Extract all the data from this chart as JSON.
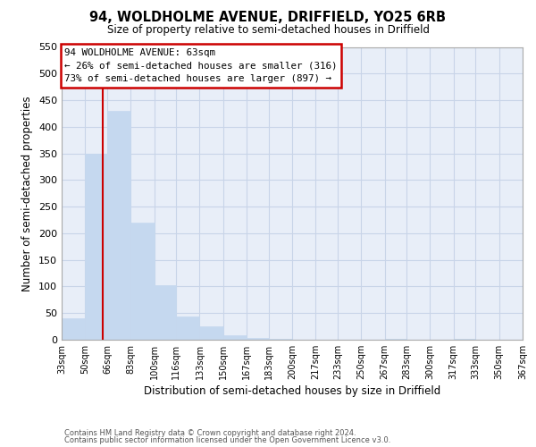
{
  "title": "94, WOLDHOLME AVENUE, DRIFFIELD, YO25 6RB",
  "subtitle": "Size of property relative to semi-detached houses in Driffield",
  "xlabel": "Distribution of semi-detached houses by size in Driffield",
  "ylabel": "Number of semi-detached properties",
  "footer_line1": "Contains HM Land Registry data © Crown copyright and database right 2024.",
  "footer_line2": "Contains public sector information licensed under the Open Government Licence v3.0.",
  "bin_edges": [
    33,
    50,
    66,
    83,
    100,
    116,
    133,
    150,
    167,
    183,
    200,
    217,
    233,
    250,
    267,
    283,
    300,
    317,
    333,
    350,
    367
  ],
  "bar_heights": [
    40,
    350,
    430,
    220,
    103,
    43,
    25,
    8,
    3,
    2,
    0,
    0,
    0,
    0,
    2,
    0,
    0,
    2,
    0,
    0
  ],
  "bar_color": "#c5d8ef",
  "bar_edge_color": "#c5d8ef",
  "property_size": 63,
  "vline_color": "#cc0000",
  "annotation_title": "94 WOLDHOLME AVENUE: 63sqm",
  "annotation_line2": "← 26% of semi-detached houses are smaller (316)",
  "annotation_line3": "73% of semi-detached houses are larger (897) →",
  "annotation_box_color": "#ffffff",
  "annotation_box_edge": "#cc0000",
  "ylim": [
    0,
    550
  ],
  "xlim": [
    33,
    367
  ],
  "tick_labels": [
    "33sqm",
    "50sqm",
    "66sqm",
    "83sqm",
    "100sqm",
    "116sqm",
    "133sqm",
    "150sqm",
    "167sqm",
    "183sqm",
    "200sqm",
    "217sqm",
    "233sqm",
    "250sqm",
    "267sqm",
    "283sqm",
    "300sqm",
    "317sqm",
    "333sqm",
    "350sqm",
    "367sqm"
  ],
  "ytick_labels": [
    "0",
    "50",
    "100",
    "150",
    "200",
    "250",
    "300",
    "350",
    "400",
    "450",
    "500",
    "550"
  ],
  "ytick_values": [
    0,
    50,
    100,
    150,
    200,
    250,
    300,
    350,
    400,
    450,
    500,
    550
  ],
  "grid_color": "#c8d4e8",
  "plot_bg_color": "#e8eef8",
  "figure_bg_color": "#ffffff"
}
